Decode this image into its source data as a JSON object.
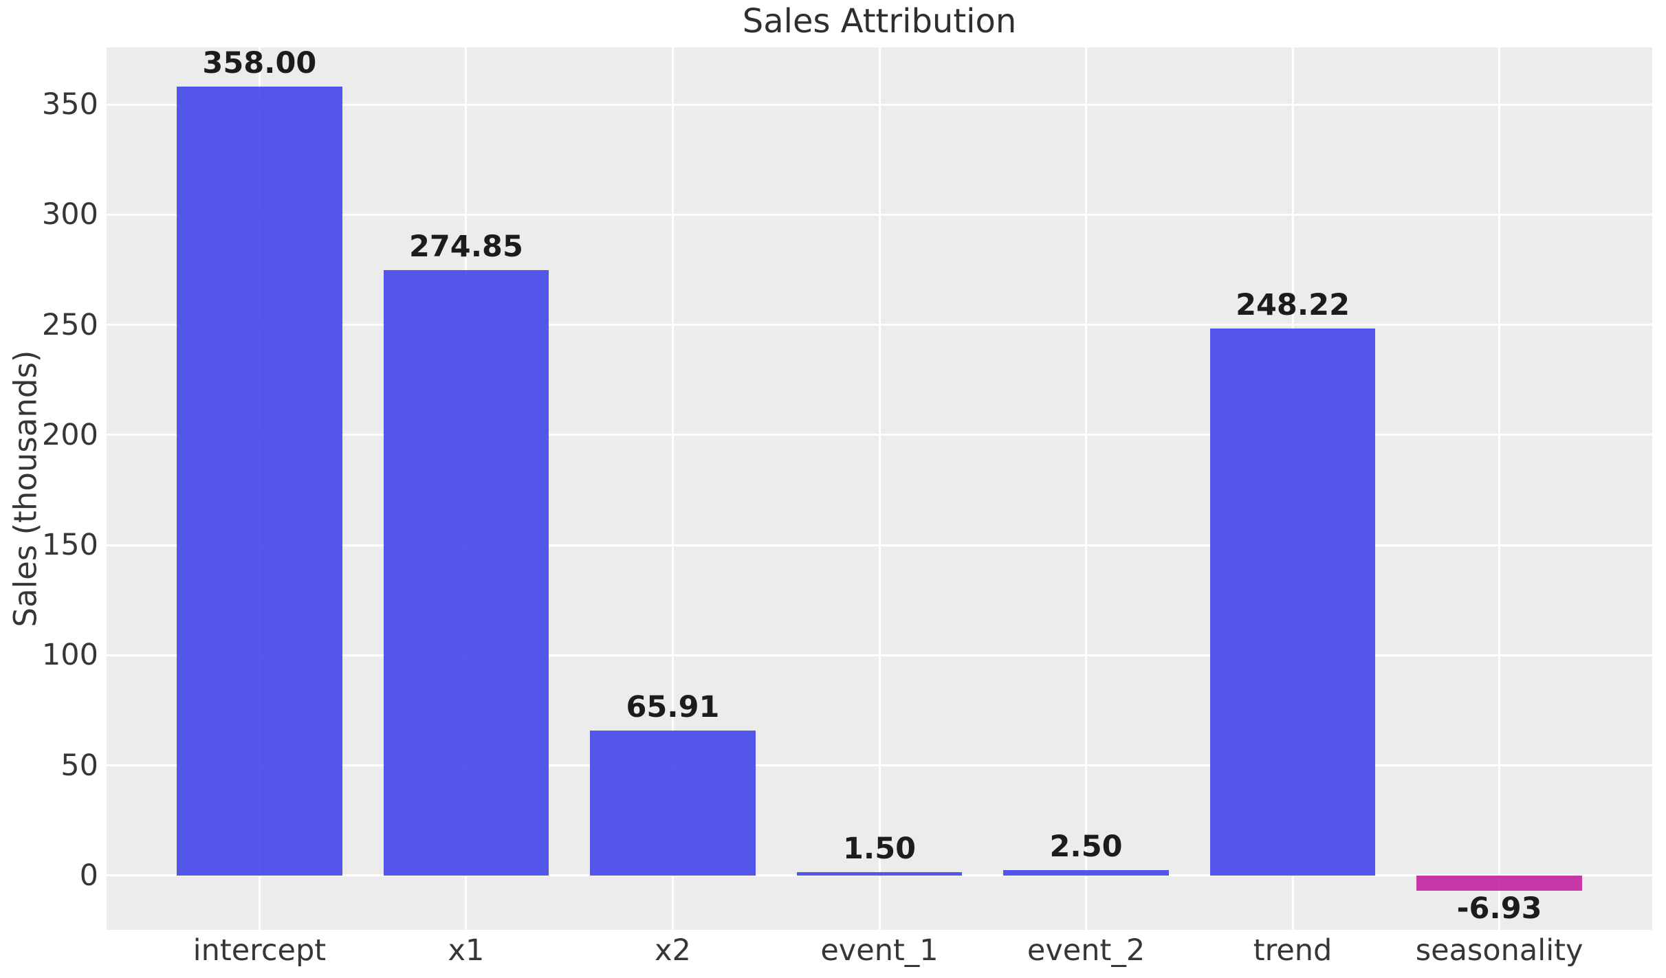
{
  "chart_data": {
    "type": "bar",
    "title": "Sales Attribution",
    "xlabel": "",
    "ylabel": "Sales (thousands)",
    "categories": [
      "intercept",
      "x1",
      "x2",
      "event_1",
      "event_2",
      "trend",
      "seasonality"
    ],
    "values": [
      358.0,
      274.85,
      65.91,
      1.5,
      2.5,
      248.22,
      -6.93
    ],
    "value_labels": [
      "358.00",
      "274.85",
      "65.91",
      "1.50",
      "2.50",
      "248.22",
      "-6.93"
    ],
    "yticks": [
      0,
      50,
      100,
      150,
      200,
      250,
      300,
      350
    ],
    "ylim": [
      -24.7,
      375.9
    ],
    "xlim": [
      -0.74,
      6.74
    ],
    "bar_width": 0.8,
    "grid": true,
    "legend_position": "none",
    "colors": {
      "bar_positive": "#4346E9",
      "bar_negative": "#C223A1",
      "plot_bg": "#ECECEC",
      "grid": "#FFFFFF",
      "tick_text": "#363636",
      "value_text": "#1C1C1C",
      "title_text": "#2F2F2F"
    }
  }
}
